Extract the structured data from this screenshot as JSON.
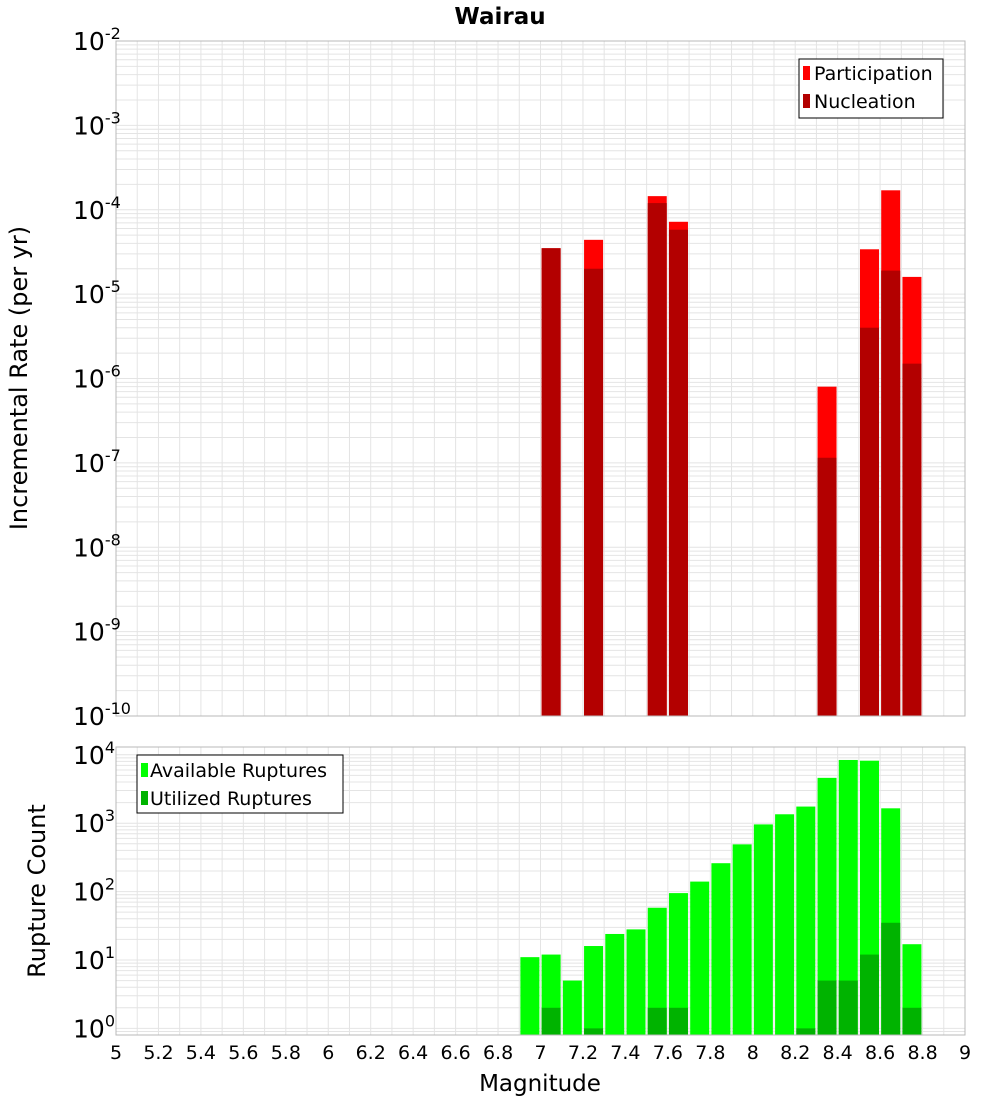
{
  "chart_data": [
    {
      "type": "bar",
      "title": "Wairau",
      "xlabel": "",
      "ylabel": "Incremental Rate (per yr)",
      "yscale": "log",
      "xlim": [
        5,
        9
      ],
      "ylim": [
        1e-10,
        0.01
      ],
      "grid": true,
      "legend_position": "top-right",
      "y_ticks": [
        {
          "base": "10",
          "exp": "-10"
        },
        {
          "base": "10",
          "exp": "-9"
        },
        {
          "base": "10",
          "exp": "-8"
        },
        {
          "base": "10",
          "exp": "-7"
        },
        {
          "base": "10",
          "exp": "-6"
        },
        {
          "base": "10",
          "exp": "-5"
        },
        {
          "base": "10",
          "exp": "-4"
        },
        {
          "base": "10",
          "exp": "-3"
        },
        {
          "base": "10",
          "exp": "-2"
        }
      ],
      "series": [
        {
          "name": "Participation",
          "color": "#ff0000",
          "points": [
            {
              "x": 7.05,
              "y": 3.5e-05
            },
            {
              "x": 7.25,
              "y": 4.4e-05
            },
            {
              "x": 7.55,
              "y": 0.000145
            },
            {
              "x": 7.65,
              "y": 7.2e-05
            },
            {
              "x": 8.35,
              "y": 8e-07
            },
            {
              "x": 8.55,
              "y": 3.4e-05
            },
            {
              "x": 8.65,
              "y": 0.00017
            },
            {
              "x": 8.75,
              "y": 1.6e-05
            }
          ]
        },
        {
          "name": "Nucleation",
          "color": "#b30000",
          "points": [
            {
              "x": 7.05,
              "y": 3.5e-05
            },
            {
              "x": 7.25,
              "y": 2e-05
            },
            {
              "x": 7.55,
              "y": 0.00012
            },
            {
              "x": 7.65,
              "y": 5.8e-05
            },
            {
              "x": 8.35,
              "y": 1.15e-07
            },
            {
              "x": 8.55,
              "y": 4e-06
            },
            {
              "x": 8.65,
              "y": 1.9e-05
            },
            {
              "x": 8.75,
              "y": 1.5e-06
            }
          ]
        }
      ]
    },
    {
      "type": "bar",
      "title": "",
      "xlabel": "Magnitude",
      "ylabel": "Rupture Count",
      "yscale": "log",
      "xlim": [
        5,
        9
      ],
      "ylim": [
        0.8,
        13000
      ],
      "grid": true,
      "legend_position": "top-left",
      "x_ticks": [
        "5",
        "5.2",
        "5.4",
        "5.6",
        "5.8",
        "6",
        "6.2",
        "6.4",
        "6.6",
        "6.8",
        "7",
        "7.2",
        "7.4",
        "7.6",
        "7.8",
        "8",
        "8.2",
        "8.4",
        "8.6",
        "8.8",
        "9"
      ],
      "y_ticks": [
        {
          "base": "10",
          "exp": "0"
        },
        {
          "base": "10",
          "exp": "1"
        },
        {
          "base": "10",
          "exp": "2"
        },
        {
          "base": "10",
          "exp": "3"
        },
        {
          "base": "10",
          "exp": "4"
        }
      ],
      "series": [
        {
          "name": "Available Ruptures",
          "color": "#00ff00",
          "points": [
            {
              "x": 6.95,
              "y": 11
            },
            {
              "x": 7.05,
              "y": 12
            },
            {
              "x": 7.15,
              "y": 5
            },
            {
              "x": 7.25,
              "y": 16
            },
            {
              "x": 7.35,
              "y": 24
            },
            {
              "x": 7.45,
              "y": 28
            },
            {
              "x": 7.55,
              "y": 58
            },
            {
              "x": 7.65,
              "y": 95
            },
            {
              "x": 7.75,
              "y": 140
            },
            {
              "x": 7.85,
              "y": 260
            },
            {
              "x": 7.95,
              "y": 490
            },
            {
              "x": 8.05,
              "y": 960
            },
            {
              "x": 8.15,
              "y": 1350
            },
            {
              "x": 8.25,
              "y": 1750
            },
            {
              "x": 8.35,
              "y": 4600
            },
            {
              "x": 8.45,
              "y": 8400
            },
            {
              "x": 8.55,
              "y": 8200
            },
            {
              "x": 8.65,
              "y": 1650
            },
            {
              "x": 8.75,
              "y": 17
            }
          ]
        },
        {
          "name": "Utilized Ruptures",
          "color": "#00b300",
          "points": [
            {
              "x": 7.05,
              "y": 2
            },
            {
              "x": 7.25,
              "y": 1
            },
            {
              "x": 7.55,
              "y": 2
            },
            {
              "x": 7.65,
              "y": 2
            },
            {
              "x": 8.25,
              "y": 1
            },
            {
              "x": 8.35,
              "y": 5
            },
            {
              "x": 8.45,
              "y": 5
            },
            {
              "x": 8.55,
              "y": 12
            },
            {
              "x": 8.65,
              "y": 35
            },
            {
              "x": 8.75,
              "y": 2
            }
          ]
        }
      ]
    }
  ]
}
